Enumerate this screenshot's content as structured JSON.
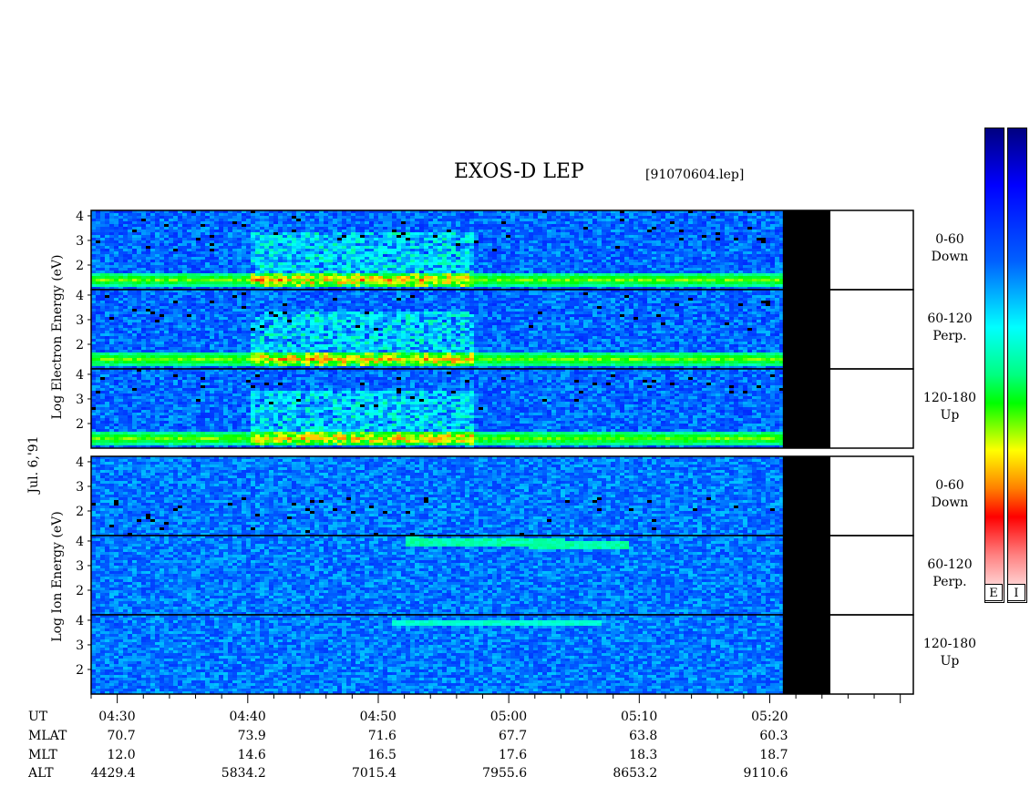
{
  "header": {
    "title": "EXOS-D LEP",
    "file": "[91070604.lep]"
  },
  "date_label": "Jul. 6,'91",
  "electron_axis_label": "Log Electron Energy (eV)",
  "ion_axis_label": "Log Ion Energy (eV)",
  "colorbar": {
    "labels": [
      "E",
      "I"
    ]
  },
  "chart_data": {
    "type": "heatmap",
    "time_axis": {
      "start": "04:28",
      "end": "05:31",
      "major_ticks": [
        "04:30",
        "04:40",
        "04:50",
        "05:00",
        "05:10",
        "05:20"
      ],
      "data_end": "05:21"
    },
    "energy_ticks": [
      1,
      2,
      3,
      4
    ],
    "panels": [
      {
        "species": "Electron",
        "pitch": "0-60",
        "dir": "Down"
      },
      {
        "species": "Electron",
        "pitch": "60-120",
        "dir": "Perp."
      },
      {
        "species": "Electron",
        "pitch": "120-180",
        "dir": "Up"
      },
      {
        "species": "Ion",
        "pitch": "0-60",
        "dir": "Down"
      },
      {
        "species": "Ion",
        "pitch": "60-120",
        "dir": "Perp."
      },
      {
        "species": "Ion",
        "pitch": "120-180",
        "dir": "Up"
      }
    ],
    "ephemeris": {
      "UT": [
        "04:30",
        "04:40",
        "04:50",
        "05:00",
        "05:10",
        "05:20"
      ],
      "MLAT": [
        "70.7",
        "73.9",
        "71.6",
        "67.7",
        "63.8",
        "60.3"
      ],
      "MLT": [
        "12.0",
        "14.6",
        "16.5",
        "17.6",
        "18.3",
        "18.7"
      ],
      "ALT": [
        "4429.4",
        "5834.2",
        "7015.4",
        "7955.6",
        "8653.2",
        "9110.6"
      ]
    },
    "row_labels": [
      "UT",
      "MLAT",
      "MLT",
      "ALT"
    ]
  }
}
